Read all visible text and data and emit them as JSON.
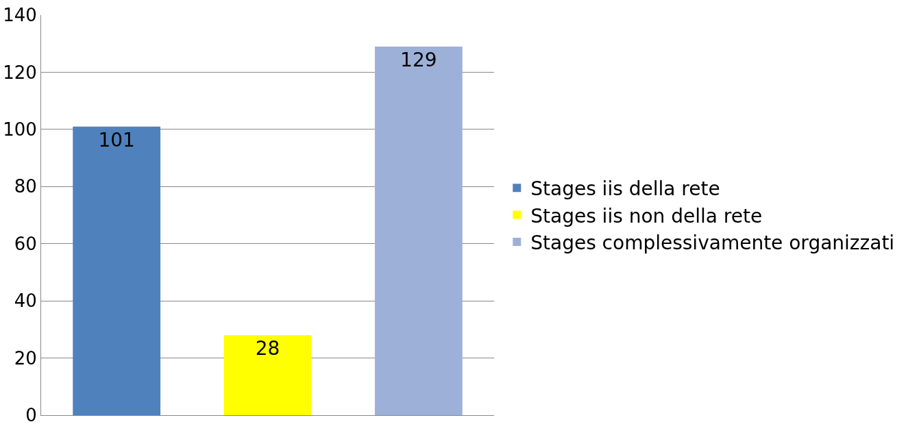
{
  "chart_data": {
    "type": "bar",
    "categories": [
      null,
      null,
      null
    ],
    "series": [
      {
        "name": "Stages iis della rete",
        "color": "#4f81bd",
        "values": [
          101,
          null,
          null
        ]
      },
      {
        "name": "Stages iis non della rete",
        "color": "#ffff00",
        "values": [
          null,
          28,
          null
        ]
      },
      {
        "name": "Stages complessivamente organizzati",
        "color": "#9db1d8",
        "values": [
          null,
          null,
          129
        ]
      }
    ],
    "ylim": [
      0,
      140
    ],
    "yticks": [
      0,
      20,
      40,
      60,
      80,
      100,
      120,
      140
    ],
    "grid": "y",
    "legend": "right",
    "data_labels": true
  }
}
